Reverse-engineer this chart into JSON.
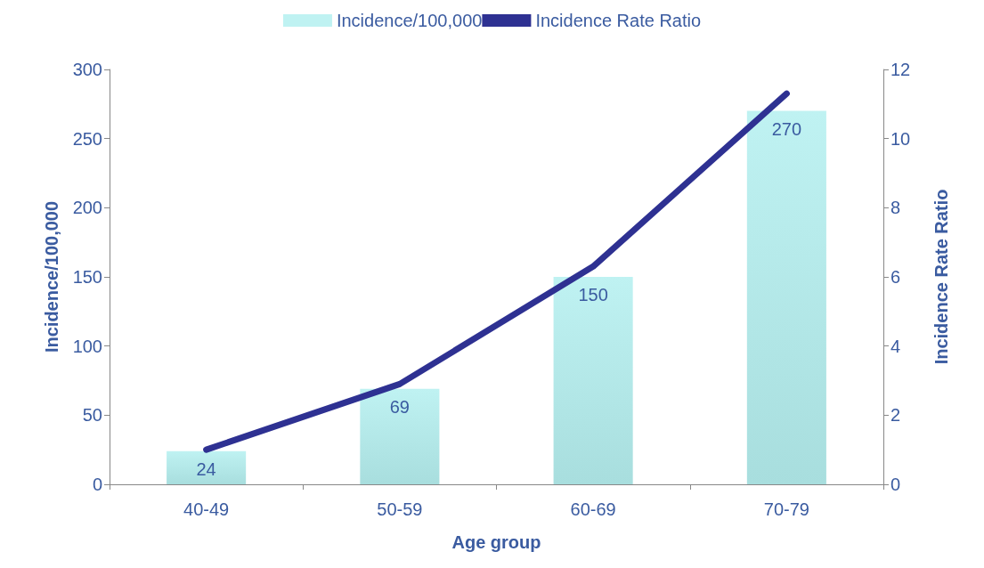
{
  "chart_data": {
    "type": "bar",
    "xlabel": "Age group",
    "ylabel": "Incidence/100,000",
    "y2label": "Incidence Rate Ratio",
    "categories": [
      "40-49",
      "50-59",
      "60-69",
      "70-79"
    ],
    "series": [
      {
        "name": "Incidence/100,000",
        "color": "#bff2f2",
        "values": [
          24,
          69,
          150,
          270
        ],
        "data_labels": true
      },
      {
        "name": "Incidence Rate Ratio",
        "type": "line",
        "color": "#2e3192",
        "axis": "y2",
        "values": [
          1,
          2.9,
          6.3,
          11.3
        ],
        "marker": "none"
      }
    ],
    "ylim": [
      0,
      300
    ],
    "yticks": [
      0,
      50,
      100,
      150,
      200,
      250,
      300
    ],
    "y2lim": [
      0,
      12
    ],
    "y2ticks": [
      0,
      2,
      4,
      6,
      8,
      10,
      12
    ],
    "grid": false,
    "legend": "top"
  }
}
